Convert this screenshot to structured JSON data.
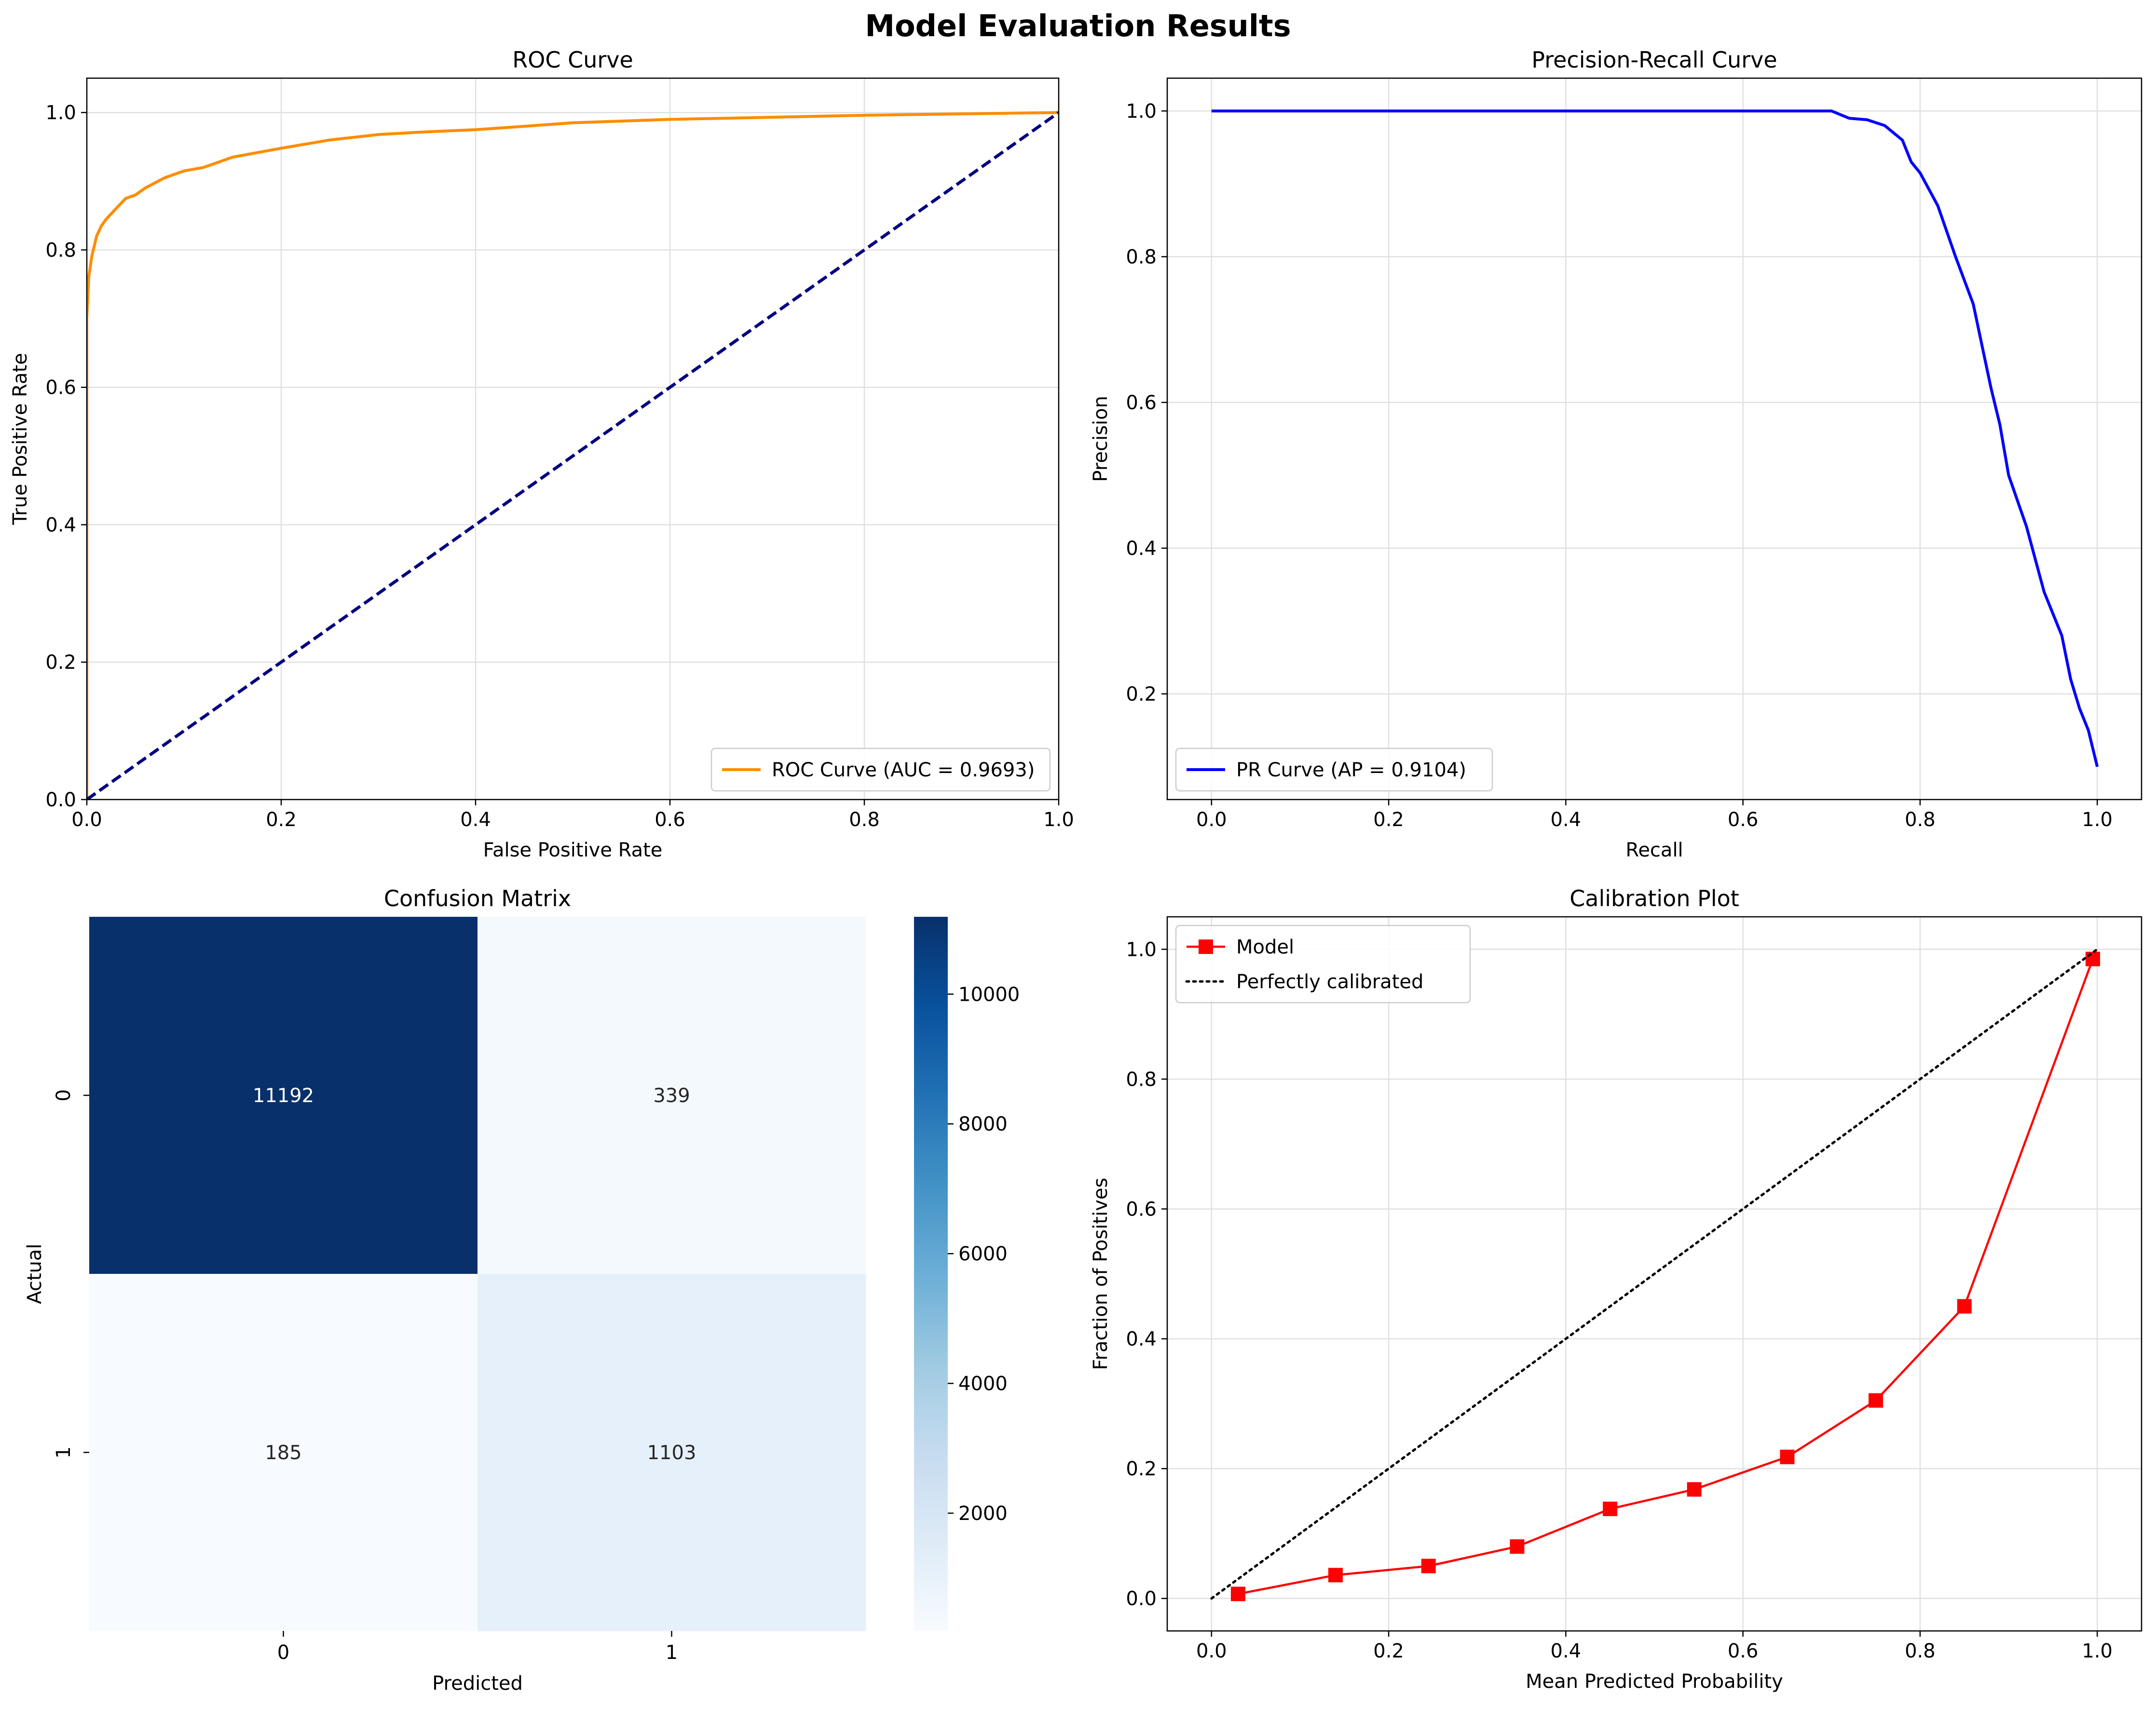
{
  "figure": {
    "title": "Model Evaluation Results"
  },
  "chart_data": [
    {
      "id": "roc",
      "type": "line",
      "title": "ROC Curve",
      "xlabel": "False Positive Rate",
      "ylabel": "True Positive Rate",
      "xlim": [
        0,
        1
      ],
      "ylim": [
        0,
        1.05
      ],
      "grid": true,
      "legend_position": "lower right",
      "x_ticks": [
        "0.0",
        "0.2",
        "0.4",
        "0.6",
        "0.8",
        "1.0"
      ],
      "y_ticks": [
        "0.0",
        "0.2",
        "0.4",
        "0.6",
        "0.8",
        "1.0"
      ],
      "series": [
        {
          "name": "ROC Curve (AUC = 0.9693)",
          "color": "#ff8c00",
          "style": "solid",
          "x": [
            0,
            0,
            0.002,
            0.005,
            0.01,
            0.015,
            0.02,
            0.03,
            0.04,
            0.05,
            0.06,
            0.08,
            0.1,
            0.12,
            0.15,
            0.2,
            0.25,
            0.3,
            0.35,
            0.4,
            0.45,
            0.5,
            0.6,
            0.7,
            0.8,
            0.9,
            1.0
          ],
          "y": [
            0,
            0.7,
            0.76,
            0.79,
            0.82,
            0.835,
            0.845,
            0.86,
            0.875,
            0.88,
            0.89,
            0.905,
            0.915,
            0.92,
            0.935,
            0.948,
            0.96,
            0.968,
            0.972,
            0.975,
            0.98,
            0.985,
            0.99,
            0.993,
            0.996,
            0.998,
            1.0
          ]
        },
        {
          "name": "",
          "color": "#000080",
          "style": "dashed",
          "x": [
            0,
            1
          ],
          "y": [
            0,
            1
          ]
        }
      ]
    },
    {
      "id": "pr",
      "type": "line",
      "title": "Precision-Recall Curve",
      "xlabel": "Recall",
      "ylabel": "Precision",
      "xlim": [
        -0.05,
        1.05
      ],
      "ylim": [
        0.055,
        1.045
      ],
      "grid": true,
      "legend_position": "lower left",
      "x_ticks": [
        "0.0",
        "0.2",
        "0.4",
        "0.6",
        "0.8",
        "1.0"
      ],
      "y_ticks": [
        "0.2",
        "0.4",
        "0.6",
        "0.8",
        "1.0"
      ],
      "series": [
        {
          "name": "PR Curve (AP = 0.9104)",
          "color": "#0000ff",
          "style": "solid",
          "x": [
            0,
            0.7,
            0.72,
            0.74,
            0.76,
            0.78,
            0.79,
            0.8,
            0.82,
            0.84,
            0.86,
            0.88,
            0.89,
            0.9,
            0.92,
            0.94,
            0.96,
            0.97,
            0.98,
            0.99,
            1.0
          ],
          "y": [
            1.0,
            1.0,
            0.99,
            0.988,
            0.98,
            0.96,
            0.93,
            0.915,
            0.87,
            0.8,
            0.735,
            0.62,
            0.57,
            0.5,
            0.43,
            0.34,
            0.28,
            0.22,
            0.18,
            0.15,
            0.1
          ]
        }
      ]
    },
    {
      "id": "confusion",
      "type": "heatmap",
      "title": "Confusion Matrix",
      "xlabel": "Predicted",
      "ylabel": "Actual",
      "x_categories": [
        "0",
        "1"
      ],
      "y_categories": [
        "0",
        "1"
      ],
      "values": [
        [
          11192,
          339
        ],
        [
          185,
          1103
        ]
      ],
      "colormap": "Blues",
      "colorbar_range": [
        185,
        11192
      ],
      "colorbar_ticks": [
        "2000",
        "4000",
        "6000",
        "8000",
        "10000"
      ],
      "colorbar_tick_values": [
        2000,
        4000,
        6000,
        8000,
        10000
      ]
    },
    {
      "id": "calibration",
      "type": "line",
      "title": "Calibration Plot",
      "xlabel": "Mean Predicted Probability",
      "ylabel": "Fraction of Positives",
      "xlim": [
        -0.05,
        1.05
      ],
      "ylim": [
        -0.05,
        1.05
      ],
      "grid": true,
      "legend_position": "upper left",
      "x_ticks": [
        "0.0",
        "0.2",
        "0.4",
        "0.6",
        "0.8",
        "1.0"
      ],
      "y_ticks": [
        "0.0",
        "0.2",
        "0.4",
        "0.6",
        "0.8",
        "1.0"
      ],
      "series": [
        {
          "name": "Model",
          "color": "#ff0000",
          "style": "solid",
          "marker": "square",
          "x": [
            0.03,
            0.14,
            0.245,
            0.345,
            0.45,
            0.545,
            0.65,
            0.75,
            0.85,
            0.995
          ],
          "y": [
            0.007,
            0.036,
            0.05,
            0.08,
            0.138,
            0.168,
            0.218,
            0.305,
            0.45,
            0.985
          ]
        },
        {
          "name": "Perfectly calibrated",
          "color": "#000000",
          "style": "dotted",
          "x": [
            0,
            1
          ],
          "y": [
            0,
            1
          ]
        }
      ]
    }
  ]
}
